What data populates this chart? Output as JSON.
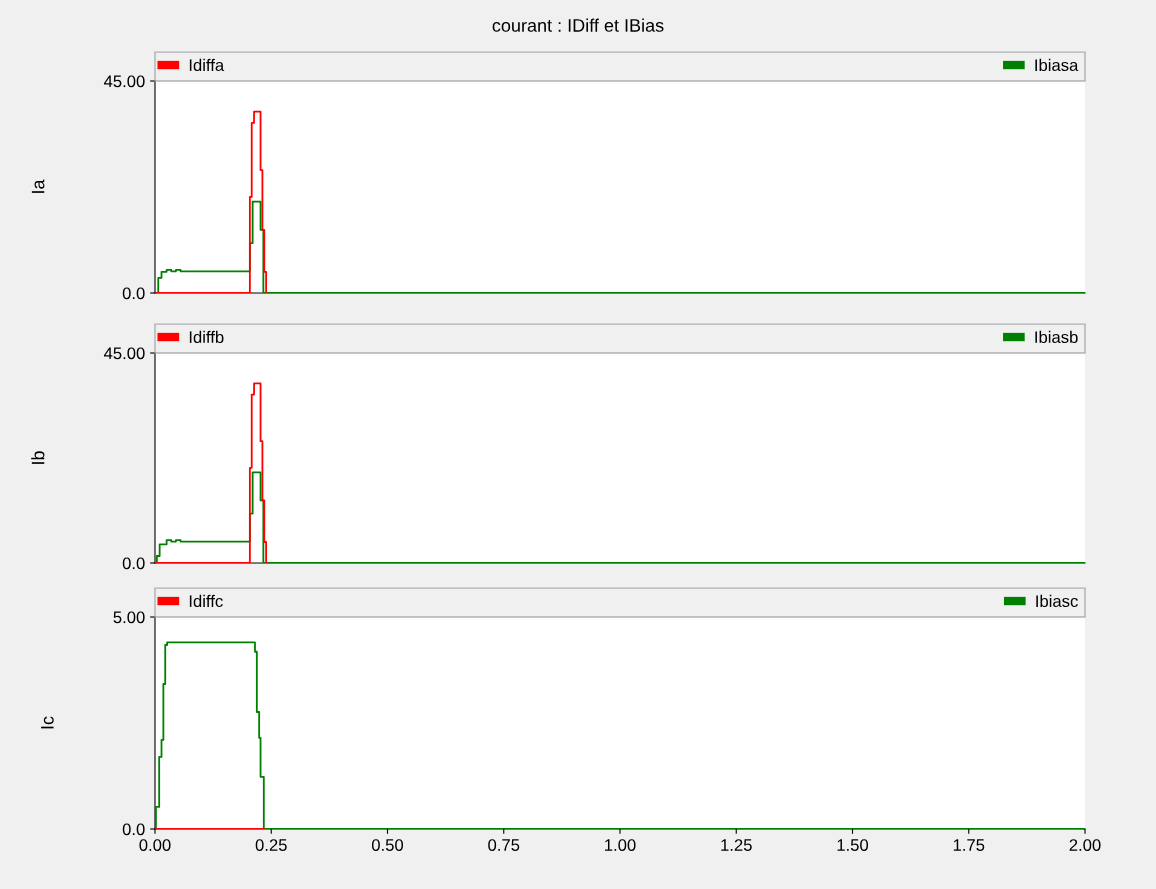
{
  "chart_data": [
    {
      "type": "step",
      "title": "courant : IDiff et IBias",
      "ylabel": "Ia",
      "xlim": [
        0,
        2
      ],
      "ylim": [
        0,
        45
      ],
      "yticks": [
        {
          "value": 0,
          "label": "0.0"
        },
        {
          "value": 45,
          "label": "45.00"
        }
      ],
      "tick_labels": "y",
      "legend": "top",
      "grid": false,
      "series": [
        {
          "name": "Idiffa",
          "color": "#ff0000",
          "x": [
            0,
            0.204,
            0.208,
            0.213,
            0.227,
            0.231,
            0.235,
            0.239
          ],
          "values": [
            0,
            20.4,
            36.1,
            38.5,
            26.1,
            13.4,
            4.5,
            0
          ]
        },
        {
          "name": "Ibiasa",
          "color": "#008000",
          "x": [
            0,
            0.007,
            0.014,
            0.025,
            0.035,
            0.045,
            0.055,
            0.204,
            0.21,
            0.227,
            0.233,
            2.0
          ],
          "values": [
            0,
            3.2,
            4.5,
            4.9,
            4.6,
            4.9,
            4.6,
            10.6,
            19.4,
            13.4,
            0,
            0
          ]
        }
      ]
    },
    {
      "type": "step",
      "ylabel": "Ib",
      "xlim": [
        0,
        2
      ],
      "ylim": [
        0,
        45
      ],
      "yticks": [
        {
          "value": 0,
          "label": "0.0"
        },
        {
          "value": 45,
          "label": "45.00"
        }
      ],
      "tick_labels": "y",
      "legend": "top",
      "grid": false,
      "series": [
        {
          "name": "Idiffb",
          "color": "#ff0000",
          "x": [
            0,
            0.204,
            0.208,
            0.213,
            0.227,
            0.231,
            0.235,
            0.239
          ],
          "values": [
            0,
            20.4,
            36.1,
            38.5,
            26.1,
            13.4,
            4.5,
            0
          ]
        },
        {
          "name": "Ibiasb",
          "color": "#008000",
          "x": [
            0,
            0.004,
            0.01,
            0.025,
            0.035,
            0.045,
            0.055,
            0.204,
            0.21,
            0.227,
            0.233,
            2.0
          ],
          "values": [
            0,
            1.5,
            4.0,
            4.9,
            4.6,
            4.9,
            4.6,
            10.6,
            19.4,
            13.4,
            0,
            0
          ]
        }
      ]
    },
    {
      "type": "step",
      "ylabel": "Ic",
      "xlim": [
        0,
        2
      ],
      "ylim": [
        0,
        5
      ],
      "yticks": [
        {
          "value": 0,
          "label": "0.0"
        },
        {
          "value": 5,
          "label": "5.00"
        }
      ],
      "xticks": [
        {
          "value": 0,
          "label": "0.00"
        },
        {
          "value": 0.25,
          "label": "0.25"
        },
        {
          "value": 0.5,
          "label": "0.50"
        },
        {
          "value": 0.75,
          "label": "0.75"
        },
        {
          "value": 1,
          "label": "1.00"
        },
        {
          "value": 1.25,
          "label": "1.25"
        },
        {
          "value": 1.5,
          "label": "1.50"
        },
        {
          "value": 1.75,
          "label": "1.75"
        },
        {
          "value": 2,
          "label": "2.00"
        }
      ],
      "legend": "top",
      "grid": false,
      "series": [
        {
          "name": "Idiffc",
          "color": "#ff0000",
          "x": [
            0,
            0.234
          ],
          "values": [
            0,
            0
          ]
        },
        {
          "name": "Ibiasc",
          "color": "#008000",
          "x": [
            0,
            0.002,
            0.009,
            0.014,
            0.018,
            0.022,
            0.026,
            0.215,
            0.219,
            0.224,
            0.227,
            0.234,
            2.0
          ],
          "values": [
            0,
            0.52,
            1.7,
            2.1,
            3.42,
            4.34,
            4.4,
            4.18,
            2.76,
            2.15,
            1.23,
            0,
            0
          ]
        }
      ]
    }
  ]
}
